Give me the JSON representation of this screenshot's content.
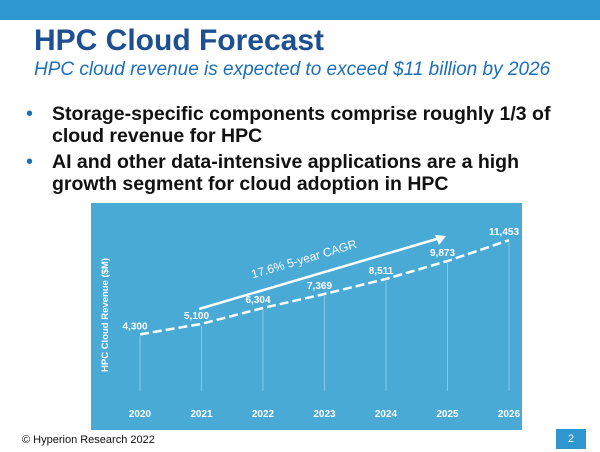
{
  "slide": {
    "title": "HPC Cloud Forecast",
    "subtitle": "HPC cloud revenue is expected to exceed $11 billion by 2026",
    "bullets": [
      "Storage-specific components comprise roughly 1/3 of cloud revenue for HPC",
      "AI and other data-intensive applications are a high growth segment for cloud adoption in HPC"
    ],
    "bullet_marker": "•",
    "footer": "© Hyperion Research 2022",
    "page_number": "2"
  },
  "colors": {
    "accent": "#2f97d0",
    "title": "#1d4f91",
    "subtitle": "#1d6fb8",
    "chart_background": "#4aaad6",
    "chart_text": "#ffffff"
  },
  "chart_data": {
    "type": "line",
    "title": "",
    "xlabel": "",
    "ylabel": "HPC Cloud Revenue ($M)",
    "categories": [
      "2020",
      "2021",
      "2022",
      "2023",
      "2024",
      "2025",
      "2026"
    ],
    "values": [
      4300,
      5100,
      6304,
      7369,
      8511,
      9873,
      11453
    ],
    "value_labels": [
      "4,300",
      "5,100",
      "6,304",
      "7,369",
      "8,511",
      "9,873",
      "11,453"
    ],
    "ylim": [
      0,
      12000
    ],
    "grid": false,
    "legend": "none",
    "annotation": "17.6% 5-year CAGR"
  }
}
